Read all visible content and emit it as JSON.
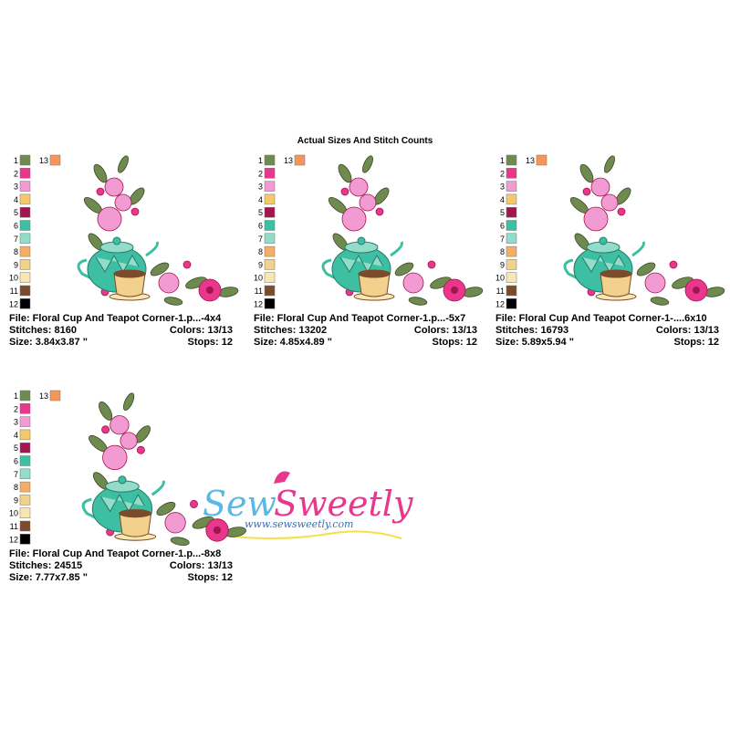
{
  "header": {
    "title": "Actual Sizes And Stitch Counts"
  },
  "swatches": [
    {
      "label": "1",
      "color": "#6f8a4e"
    },
    {
      "label": "2",
      "color": "#e8378c"
    },
    {
      "label": "3",
      "color": "#f19bd2"
    },
    {
      "label": "4",
      "color": "#f6c86c"
    },
    {
      "label": "5",
      "color": "#a2154f"
    },
    {
      "label": "6",
      "color": "#3cbfa3"
    },
    {
      "label": "7",
      "color": "#92dcc9"
    },
    {
      "label": "8",
      "color": "#f3ae68"
    },
    {
      "label": "9",
      "color": "#f1d18b"
    },
    {
      "label": "10",
      "color": "#f8e7b2"
    },
    {
      "label": "11",
      "color": "#7b4b2c"
    },
    {
      "label": "12",
      "color": "#000000"
    },
    {
      "label": "13",
      "color": "#f4955a"
    }
  ],
  "panels": [
    {
      "file": "File: Floral Cup And Teapot Corner-1.p...-4x4",
      "stitches": "Stitches: 8160",
      "colors": "Colors: 13/13",
      "size": "Size: 3.84x3.87 \"",
      "stops": "Stops: 12"
    },
    {
      "file": "File: Floral Cup And Teapot Corner-1.p...-5x7",
      "stitches": "Stitches: 13202",
      "colors": "Colors: 13/13",
      "size": "Size: 4.85x4.89 \"",
      "stops": "Stops: 12"
    },
    {
      "file": "File: Floral Cup And Teapot Corner-1-....6x10",
      "stitches": "Stitches: 16793",
      "colors": "Colors: 13/13",
      "size": "Size: 5.89x5.94 \"",
      "stops": "Stops: 12"
    },
    {
      "file": "File: Floral Cup And Teapot Corner-1.p...-8x8",
      "stitches": "Stitches: 24515",
      "colors": "Colors: 13/13",
      "size": "Size: 7.77x7.85 \"",
      "stops": "Stops: 12"
    }
  ],
  "logo": {
    "word1": "Sew",
    "word2": "Sweetly",
    "url": "www.sewsweetly.com"
  }
}
